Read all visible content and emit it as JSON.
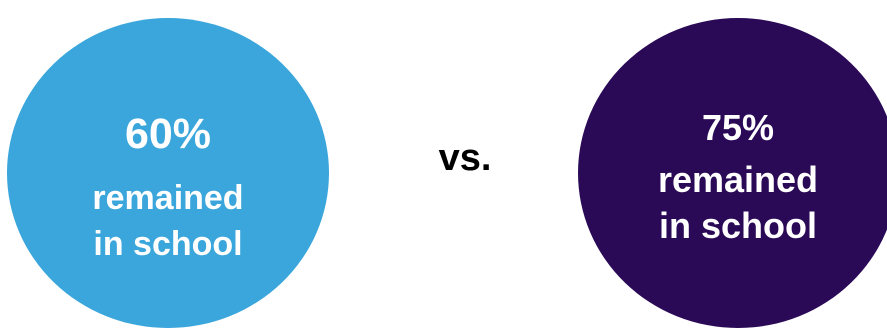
{
  "left_stat": {
    "percent": "60%",
    "line1": "remained",
    "line2": "in school",
    "color": "#3aa6db"
  },
  "separator": "vs.",
  "right_stat": {
    "percent": "75%",
    "line1": "remained",
    "line2": "in school",
    "color": "#2a0a57"
  }
}
